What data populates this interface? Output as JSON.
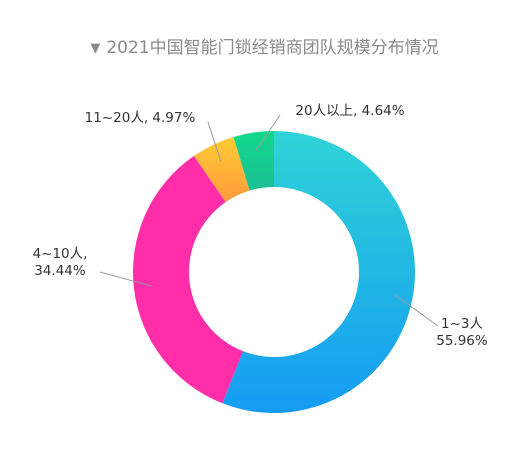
{
  "chart_data": {
    "type": "pie",
    "title": "2021中国智能门锁经销商团队规模分布情况",
    "categories": [
      "1~3人",
      "4~10人",
      "11~20人",
      "20人以上"
    ],
    "values": [
      55.96,
      34.44,
      4.97,
      4.64
    ],
    "value_labels": [
      "55.96%",
      "34.44%",
      "4.97%",
      "4.64%"
    ],
    "donut": true,
    "legend": "none",
    "colors": {
      "1~3人": [
        "#2fd3d6",
        "#159cf2"
      ],
      "4~10人": [
        "#ff2ea8",
        "#ff2ea8"
      ],
      "11~20人": [
        "#ffa63a",
        "#ffcc33"
      ],
      "20人以上": [
        "#18d48a",
        "#12c781"
      ]
    }
  }
}
